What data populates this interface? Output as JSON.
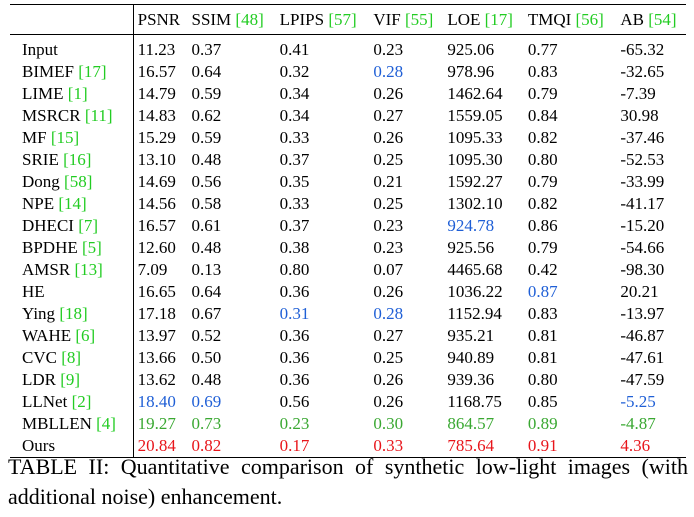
{
  "caption": "TABLE II: Quantitative comparison of synthetic low-light images (with additional noise) enhancement.",
  "columns": [
    {
      "name": "PSNR",
      "cite": ""
    },
    {
      "name": "SSIM",
      "cite": "[48]"
    },
    {
      "name": "LPIPS",
      "cite": "[57]"
    },
    {
      "name": "VIF",
      "cite": "[55]"
    },
    {
      "name": "LOE",
      "cite": "[17]"
    },
    {
      "name": "TMQI",
      "cite": "[56]"
    },
    {
      "name": "AB",
      "cite": "[54]"
    }
  ],
  "rows": [
    {
      "method": "Input",
      "cite": "",
      "values": [
        "11.23",
        "0.37",
        "0.41",
        "0.23",
        "925.06",
        "0.77",
        "-65.32"
      ],
      "styles": [
        "",
        "",
        "",
        "",
        "",
        "",
        ""
      ]
    },
    {
      "method": "BIMEF",
      "cite": "[17]",
      "values": [
        "16.57",
        "0.64",
        "0.32",
        "0.28",
        "978.96",
        "0.83",
        "-32.65"
      ],
      "styles": [
        "",
        "",
        "",
        "blue",
        "",
        "",
        ""
      ]
    },
    {
      "method": "LIME",
      "cite": "[1]",
      "values": [
        "14.79",
        "0.59",
        "0.34",
        "0.26",
        "1462.64",
        "0.79",
        "-7.39"
      ],
      "styles": [
        "",
        "",
        "",
        "",
        "",
        "",
        ""
      ]
    },
    {
      "method": "MSRCR",
      "cite": "[11]",
      "values": [
        "14.83",
        "0.62",
        "0.34",
        "0.27",
        "1559.05",
        "0.84",
        "30.98"
      ],
      "styles": [
        "",
        "",
        "",
        "",
        "",
        "",
        ""
      ]
    },
    {
      "method": "MF",
      "cite": "[15]",
      "values": [
        "15.29",
        "0.59",
        "0.33",
        "0.26",
        "1095.33",
        "0.82",
        "-37.46"
      ],
      "styles": [
        "",
        "",
        "",
        "",
        "",
        "",
        ""
      ]
    },
    {
      "method": "SRIE",
      "cite": "[16]",
      "values": [
        "13.10",
        "0.48",
        "0.37",
        "0.25",
        "1095.30",
        "0.80",
        "-52.53"
      ],
      "styles": [
        "",
        "",
        "",
        "",
        "",
        "",
        ""
      ]
    },
    {
      "method": "Dong",
      "cite": "[58]",
      "values": [
        "14.69",
        "0.56",
        "0.35",
        "0.21",
        "1592.27",
        "0.79",
        "-33.99"
      ],
      "styles": [
        "",
        "",
        "",
        "",
        "",
        "",
        ""
      ]
    },
    {
      "method": "NPE",
      "cite": "[14]",
      "values": [
        "14.56",
        "0.58",
        "0.33",
        "0.25",
        "1302.10",
        "0.82",
        "-41.17"
      ],
      "styles": [
        "",
        "",
        "",
        "",
        "",
        "",
        ""
      ]
    },
    {
      "method": "DHECI",
      "cite": "[7]",
      "values": [
        "16.57",
        "0.61",
        "0.37",
        "0.23",
        "924.78",
        "0.86",
        "-15.20"
      ],
      "styles": [
        "",
        "",
        "",
        "",
        "blue",
        "",
        ""
      ]
    },
    {
      "method": "BPDHE",
      "cite": "[5]",
      "values": [
        "12.60",
        "0.48",
        "0.38",
        "0.23",
        "925.56",
        "0.79",
        "-54.66"
      ],
      "styles": [
        "",
        "",
        "",
        "",
        "",
        "",
        ""
      ]
    },
    {
      "method": "AMSR",
      "cite": "[13]",
      "values": [
        "7.09",
        "0.13",
        "0.80",
        "0.07",
        "4465.68",
        "0.42",
        "-98.30"
      ],
      "styles": [
        "",
        "",
        "",
        "",
        "",
        "",
        ""
      ]
    },
    {
      "method": "HE",
      "cite": "",
      "values": [
        "16.65",
        "0.64",
        "0.36",
        "0.26",
        "1036.22",
        "0.87",
        "20.21"
      ],
      "styles": [
        "",
        "",
        "",
        "",
        "",
        "blue",
        ""
      ]
    },
    {
      "method": "Ying",
      "cite": "[18]",
      "values": [
        "17.18",
        "0.67",
        "0.31",
        "0.28",
        "1152.94",
        "0.83",
        "-13.97"
      ],
      "styles": [
        "",
        "",
        "blue",
        "blue",
        "",
        "",
        ""
      ]
    },
    {
      "method": "WAHE",
      "cite": "[6]",
      "values": [
        "13.97",
        "0.52",
        "0.36",
        "0.27",
        "935.21",
        "0.81",
        "-46.87"
      ],
      "styles": [
        "",
        "",
        "",
        "",
        "",
        "",
        ""
      ]
    },
    {
      "method": "CVC",
      "cite": "[8]",
      "values": [
        "13.66",
        "0.50",
        "0.36",
        "0.25",
        "940.89",
        "0.81",
        "-47.61"
      ],
      "styles": [
        "",
        "",
        "",
        "",
        "",
        "",
        ""
      ]
    },
    {
      "method": "LDR",
      "cite": "[9]",
      "values": [
        "13.62",
        "0.48",
        "0.36",
        "0.26",
        "939.36",
        "0.80",
        "-47.59"
      ],
      "styles": [
        "",
        "",
        "",
        "",
        "",
        "",
        ""
      ]
    },
    {
      "method": "LLNet",
      "cite": "[2]",
      "values": [
        "18.40",
        "0.69",
        "0.56",
        "0.26",
        "1168.75",
        "0.85",
        "-5.25"
      ],
      "styles": [
        "blue",
        "blue",
        "",
        "",
        "",
        "",
        "blue"
      ]
    },
    {
      "method": "MBLLEN",
      "cite": "[4]",
      "values": [
        "19.27",
        "0.73",
        "0.23",
        "0.30",
        "864.57",
        "0.89",
        "-4.87"
      ],
      "styles": [
        "green",
        "green",
        "green",
        "green",
        "green",
        "green",
        "green"
      ]
    },
    {
      "method": "Ours",
      "cite": "",
      "values": [
        "20.84",
        "0.82",
        "0.17",
        "0.33",
        "785.64",
        "0.91",
        "4.36"
      ],
      "styles": [
        "red",
        "red",
        "red",
        "red",
        "red",
        "red",
        "red"
      ]
    }
  ],
  "colors": {
    "cite": "#22cc22",
    "blue": "#1f5fd6",
    "green": "#3aa832",
    "red": "#e8151b"
  }
}
